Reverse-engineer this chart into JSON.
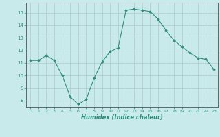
{
  "x": [
    0,
    1,
    2,
    3,
    4,
    5,
    6,
    7,
    8,
    9,
    10,
    11,
    12,
    13,
    14,
    15,
    16,
    17,
    18,
    19,
    20,
    21,
    22,
    23
  ],
  "y": [
    11.2,
    11.2,
    11.6,
    11.2,
    10.0,
    8.3,
    7.7,
    8.1,
    9.8,
    11.1,
    11.9,
    12.2,
    15.2,
    15.3,
    15.2,
    15.1,
    14.5,
    13.6,
    12.8,
    12.3,
    11.8,
    11.4,
    11.3,
    10.5
  ],
  "xlabel": "Humidex (Indice chaleur)",
  "ylim": [
    7.5,
    15.8
  ],
  "xlim": [
    -0.5,
    23.5
  ],
  "yticks": [
    8,
    9,
    10,
    11,
    12,
    13,
    14,
    15
  ],
  "xticks": [
    0,
    1,
    2,
    3,
    4,
    5,
    6,
    7,
    8,
    9,
    10,
    11,
    12,
    13,
    14,
    15,
    16,
    17,
    18,
    19,
    20,
    21,
    22,
    23
  ],
  "line_color": "#2e8b7a",
  "marker_color": "#2e8b7a",
  "bg_color": "#c8eaea",
  "grid_color": "#b0c8c8",
  "axis_color": "#505050",
  "tick_color": "#2e8b7a"
}
